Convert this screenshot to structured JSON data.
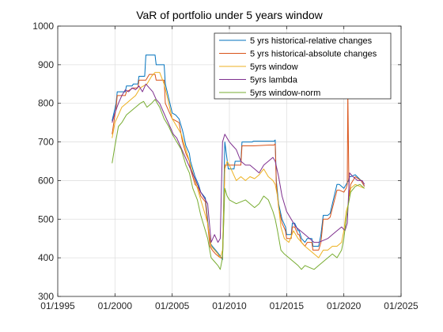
{
  "chart_data": {
    "type": "line",
    "title": "VaR of portfolio under 5 years window",
    "xlabel": "",
    "ylabel": "",
    "xlim": [
      "01/1995",
      "01/2025"
    ],
    "ylim": [
      300,
      1000
    ],
    "x_ticks": [
      "01/1995",
      "01/2000",
      "01/2005",
      "01/2010",
      "01/2015",
      "01/2020",
      "01/2025"
    ],
    "y_ticks": [
      300,
      400,
      500,
      600,
      700,
      800,
      900,
      1000
    ],
    "grid": true,
    "legend_position": "top-right",
    "x_unit": "decimal year",
    "series": [
      {
        "name": "5 yrs historical-relative changes",
        "color": "#0072BD",
        "x": [
          1999.75,
          2000.1,
          2000.2,
          2000.9,
          2001.0,
          2001.5,
          2001.6,
          2002.0,
          2002.1,
          2002.6,
          2002.7,
          2003.5,
          2003.6,
          2004.3,
          2004.4,
          2005.0,
          2005.3,
          2005.6,
          2005.9,
          2006.2,
          2006.5,
          2006.6,
          2007.0,
          2007.3,
          2007.5,
          2007.9,
          2008.3,
          2008.5,
          2008.8,
          2009.2,
          2009.4,
          2009.6,
          2009.9,
          2010.4,
          2010.5,
          2011.0,
          2011.1,
          2012.0,
          2012.1,
          2013.9,
          2014.0,
          2014.1,
          2014.3,
          2014.6,
          2014.9,
          2015.0,
          2015.4,
          2015.5,
          2015.7,
          2016.0,
          2016.1,
          2016.3,
          2016.6,
          2016.8,
          2017.2,
          2017.3,
          2017.8,
          2018.0,
          2018.2,
          2018.6,
          2018.8,
          2019.4,
          2019.6,
          2020.0,
          2020.2,
          2020.4,
          2020.45,
          2020.6,
          2021.0,
          2021.5,
          2021.8
        ],
        "y": [
          755,
          800,
          830,
          830,
          845,
          845,
          850,
          850,
          870,
          870,
          925,
          925,
          900,
          900,
          850,
          775,
          770,
          760,
          730,
          690,
          670,
          650,
          610,
          590,
          570,
          555,
          440,
          430,
          420,
          405,
          395,
          700,
          630,
          630,
          650,
          650,
          700,
          700,
          702,
          702,
          705,
          600,
          540,
          500,
          480,
          460,
          460,
          490,
          490,
          470,
          470,
          450,
          440,
          450,
          450,
          430,
          430,
          460,
          510,
          510,
          515,
          590,
          590,
          580,
          590,
          600,
          610,
          610,
          615,
          600,
          585
        ]
      },
      {
        "name": "5 yrs historical-absolute changes",
        "color": "#D95319",
        "x": [
          1999.75,
          2000.1,
          2000.2,
          2000.9,
          2001.0,
          2001.6,
          2002.0,
          2002.1,
          2002.7,
          2003.0,
          2003.5,
          2003.6,
          2004.3,
          2004.4,
          2005.0,
          2005.3,
          2005.6,
          2005.9,
          2006.2,
          2006.5,
          2006.6,
          2007.0,
          2007.3,
          2007.5,
          2007.9,
          2008.3,
          2008.5,
          2008.8,
          2009.2,
          2009.4,
          2009.5,
          2009.6,
          2010.4,
          2010.5,
          2011.0,
          2011.1,
          2012.0,
          2012.1,
          2013.5,
          2013.9,
          2014.0,
          2014.1,
          2014.3,
          2014.6,
          2014.9,
          2015.0,
          2015.4,
          2015.5,
          2015.7,
          2016.0,
          2016.1,
          2016.3,
          2016.6,
          2016.8,
          2017.2,
          2017.3,
          2017.8,
          2018.0,
          2018.2,
          2018.6,
          2018.8,
          2019.4,
          2019.6,
          2020.0,
          2020.1,
          2020.2,
          2020.3,
          2020.35,
          2020.45,
          2020.6,
          2021.0,
          2021.5,
          2021.8
        ],
        "y": [
          720,
          790,
          820,
          820,
          830,
          840,
          840,
          860,
          860,
          875,
          875,
          860,
          860,
          800,
          760,
          755,
          750,
          700,
          670,
          650,
          630,
          590,
          580,
          560,
          545,
          430,
          420,
          410,
          400,
          400,
          500,
          640,
          640,
          640,
          640,
          690,
          690,
          690,
          692,
          692,
          695,
          590,
          530,
          490,
          470,
          450,
          450,
          480,
          480,
          460,
          460,
          440,
          430,
          440,
          440,
          420,
          420,
          440,
          500,
          500,
          505,
          575,
          575,
          570,
          575,
          580,
          590,
          830,
          560,
          590,
          610,
          600,
          585
        ]
      },
      {
        "name": "5yrs window",
        "color": "#EDB120",
        "x": [
          1999.75,
          2000.0,
          2000.3,
          2000.6,
          2001.0,
          2001.4,
          2001.8,
          2002.2,
          2002.5,
          2002.8,
          2003.2,
          2003.5,
          2003.9,
          2004.3,
          2004.7,
          2005.0,
          2005.4,
          2005.8,
          2006.2,
          2006.5,
          2006.8,
          2007.2,
          2007.5,
          2007.8,
          2008.1,
          2008.4,
          2008.7,
          2009.0,
          2009.2,
          2009.4,
          2009.6,
          2009.8,
          2010.0,
          2010.3,
          2010.6,
          2011.0,
          2011.4,
          2011.8,
          2012.2,
          2012.6,
          2013.0,
          2013.4,
          2013.8,
          2014.0,
          2014.2,
          2014.5,
          2014.8,
          2015.2,
          2015.6,
          2016.0,
          2016.3,
          2016.6,
          2017.0,
          2017.4,
          2017.8,
          2018.2,
          2018.6,
          2019.0,
          2019.4,
          2019.8,
          2020.0,
          2020.2,
          2020.4,
          2020.6,
          2021.0,
          2021.4,
          2021.8
        ],
        "y": [
          710,
          750,
          770,
          790,
          800,
          810,
          820,
          840,
          845,
          850,
          870,
          880,
          880,
          850,
          800,
          760,
          740,
          720,
          680,
          650,
          620,
          580,
          550,
          520,
          490,
          430,
          420,
          410,
          400,
          420,
          630,
          650,
          640,
          620,
          600,
          610,
          600,
          610,
          605,
          615,
          630,
          610,
          600,
          590,
          560,
          480,
          450,
          440,
          470,
          450,
          440,
          430,
          420,
          410,
          400,
          420,
          420,
          430,
          430,
          440,
          470,
          520,
          540,
          580,
          590,
          585,
          580
        ]
      },
      {
        "name": "5yrs lambda",
        "color": "#7E2F8E",
        "x": [
          1999.75,
          2000.0,
          2000.3,
          2000.6,
          2000.9,
          2001.2,
          2001.5,
          2001.8,
          2002.1,
          2002.4,
          2002.7,
          2003.0,
          2003.3,
          2003.6,
          2003.9,
          2004.2,
          2004.5,
          2004.8,
          2005.1,
          2005.4,
          2005.7,
          2006.0,
          2006.3,
          2006.6,
          2006.9,
          2007.2,
          2007.5,
          2007.8,
          2008.1,
          2008.4,
          2008.7,
          2009.0,
          2009.2,
          2009.4,
          2009.6,
          2009.8,
          2010.0,
          2010.3,
          2010.6,
          2011.0,
          2011.4,
          2011.8,
          2012.2,
          2012.6,
          2013.0,
          2013.4,
          2013.8,
          2014.0,
          2014.3,
          2014.6,
          2015.0,
          2015.4,
          2015.8,
          2016.2,
          2016.6,
          2017.0,
          2017.4,
          2017.8,
          2018.2,
          2018.6,
          2019.0,
          2019.4,
          2019.8,
          2020.1,
          2020.3,
          2020.5,
          2020.8,
          2021.2,
          2021.6,
          2021.8
        ],
        "y": [
          750,
          775,
          800,
          820,
          835,
          830,
          840,
          835,
          845,
          830,
          850,
          840,
          830,
          810,
          800,
          780,
          760,
          740,
          720,
          710,
          690,
          670,
          650,
          630,
          610,
          590,
          570,
          555,
          540,
          440,
          460,
          440,
          450,
          700,
          720,
          710,
          700,
          690,
          680,
          650,
          640,
          640,
          630,
          620,
          640,
          650,
          660,
          650,
          610,
          560,
          520,
          500,
          480,
          470,
          460,
          450,
          440,
          440,
          445,
          450,
          460,
          470,
          480,
          470,
          490,
          620,
          610,
          600,
          600,
          590
        ]
      },
      {
        "name": "5yrs window-norm",
        "color": "#77AC30",
        "x": [
          1999.75,
          2000.0,
          2000.3,
          2000.6,
          2001.0,
          2001.4,
          2001.8,
          2002.2,
          2002.5,
          2002.8,
          2003.2,
          2003.5,
          2003.9,
          2004.3,
          2004.7,
          2005.0,
          2005.4,
          2005.8,
          2006.2,
          2006.5,
          2006.8,
          2007.2,
          2007.5,
          2007.8,
          2008.1,
          2008.4,
          2008.7,
          2009.0,
          2009.2,
          2009.4,
          2009.6,
          2009.8,
          2010.0,
          2010.3,
          2010.6,
          2011.0,
          2011.4,
          2011.8,
          2012.2,
          2012.6,
          2013.0,
          2013.4,
          2013.8,
          2014.0,
          2014.2,
          2014.5,
          2014.8,
          2015.2,
          2015.6,
          2016.0,
          2016.3,
          2016.6,
          2017.0,
          2017.4,
          2017.8,
          2018.2,
          2018.6,
          2019.0,
          2019.4,
          2019.8,
          2020.0,
          2020.2,
          2020.4,
          2020.6,
          2021.0,
          2021.4,
          2021.8
        ],
        "y": [
          645,
          690,
          740,
          750,
          770,
          780,
          790,
          800,
          805,
          790,
          800,
          810,
          790,
          760,
          740,
          720,
          700,
          680,
          640,
          620,
          580,
          550,
          510,
          480,
          450,
          400,
          390,
          380,
          370,
          400,
          580,
          560,
          550,
          545,
          540,
          545,
          550,
          540,
          530,
          540,
          560,
          550,
          520,
          500,
          470,
          420,
          410,
          400,
          390,
          380,
          370,
          380,
          375,
          370,
          380,
          390,
          400,
          410,
          400,
          420,
          450,
          500,
          540,
          570,
          585,
          590,
          580
        ]
      }
    ]
  }
}
